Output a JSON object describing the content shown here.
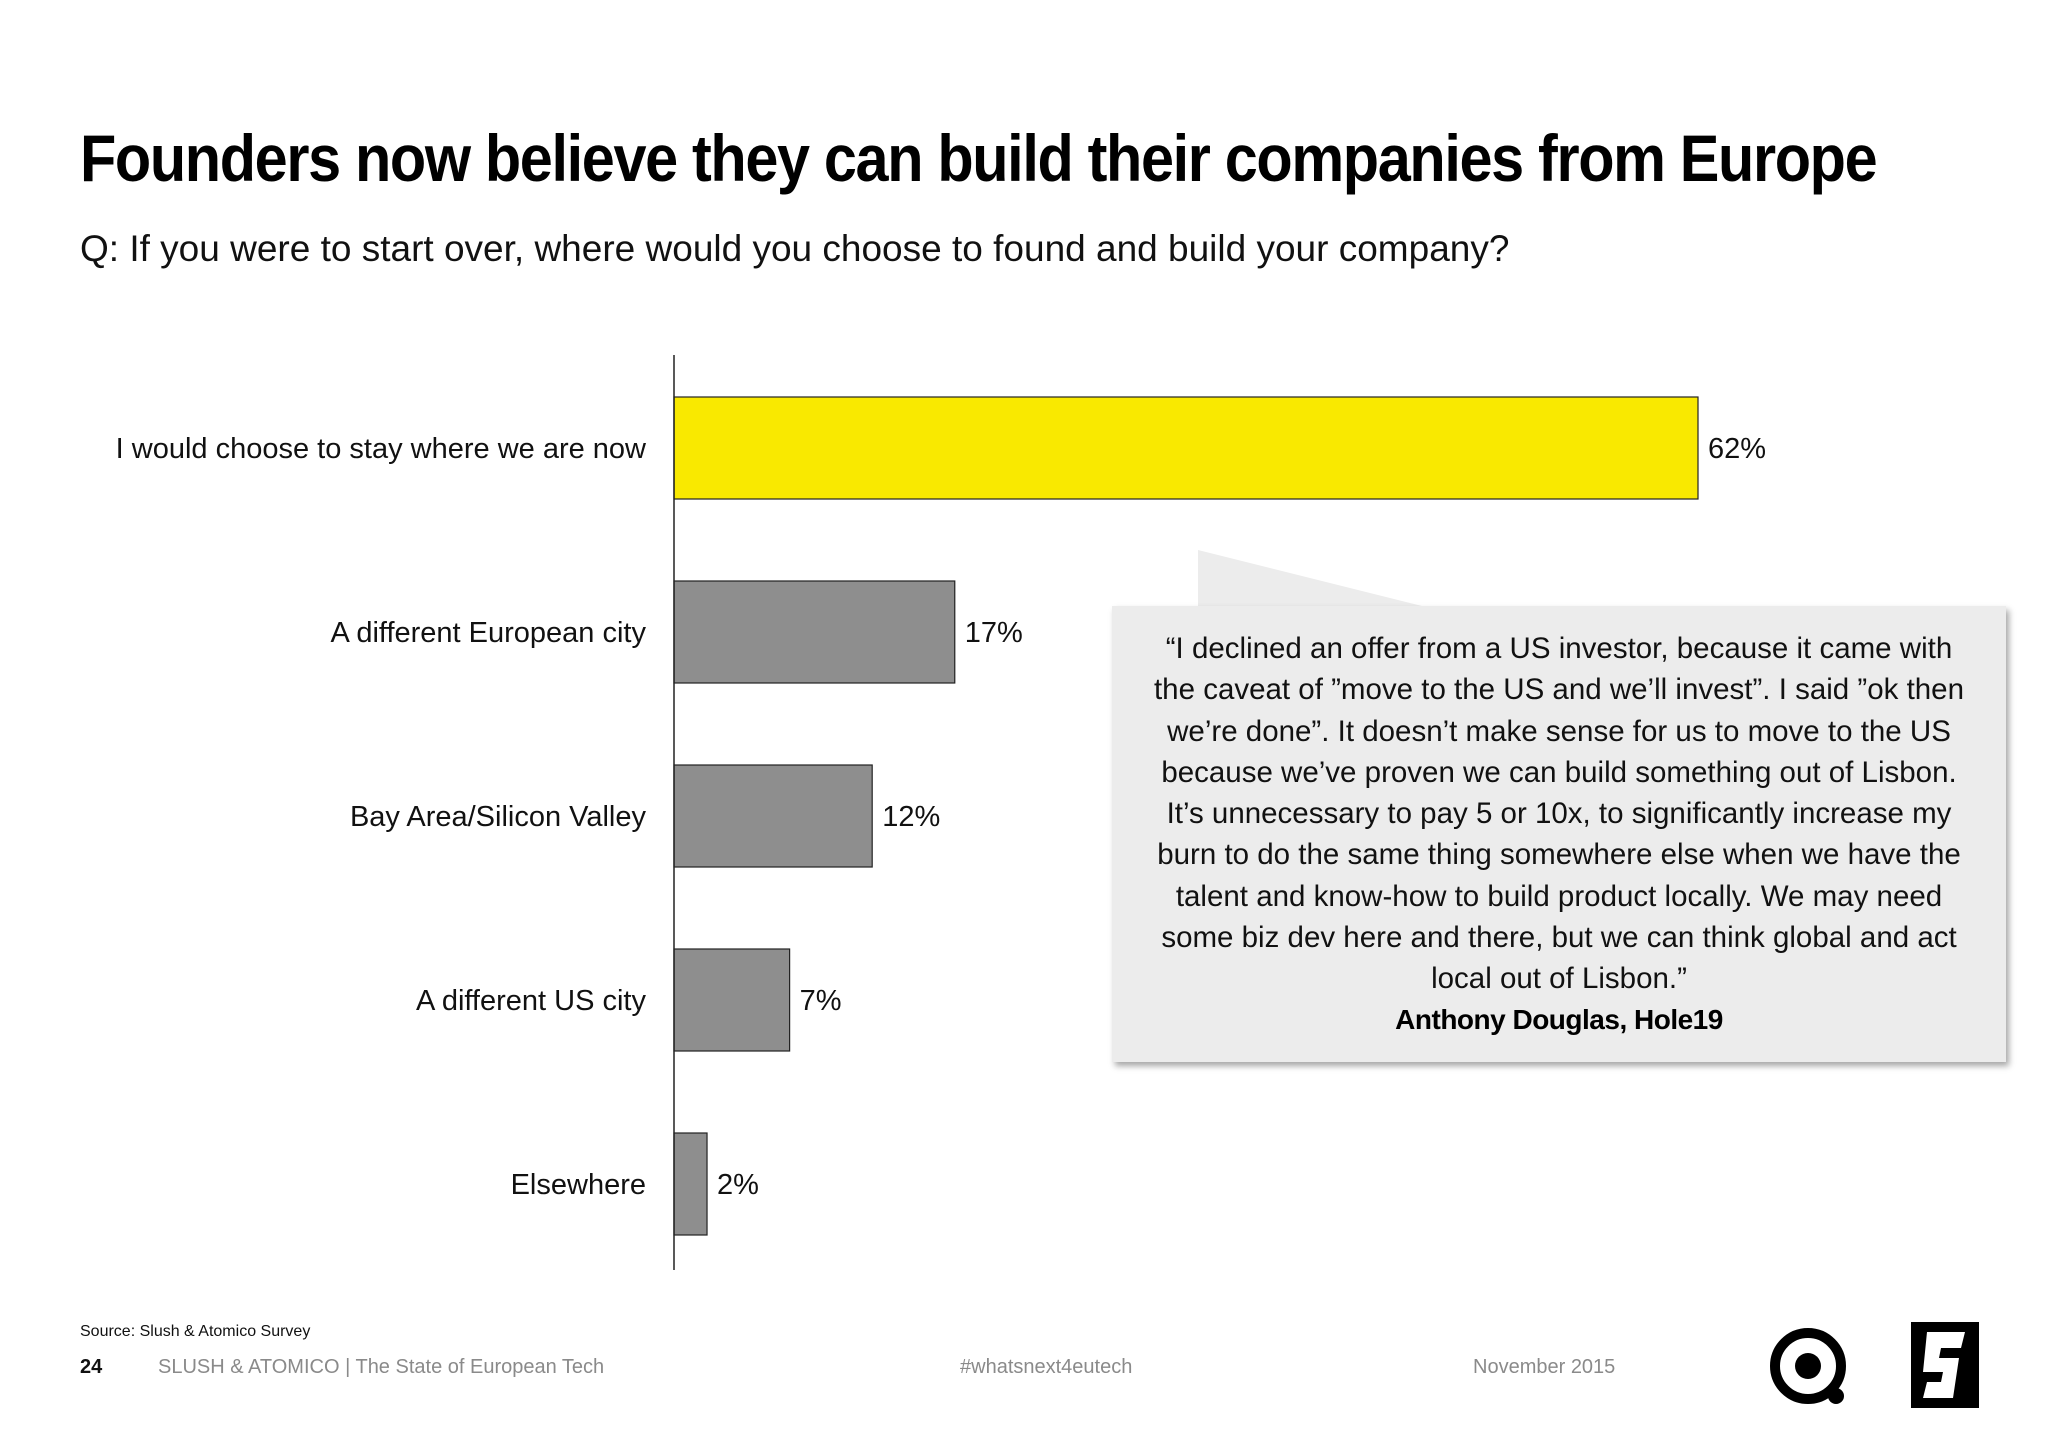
{
  "slide": {
    "title": "Founders now believe they can build their companies from Europe",
    "question": "Q: If you were to start over, where would you choose to found and build your company?"
  },
  "chart_data": {
    "type": "bar",
    "orientation": "horizontal",
    "categories": [
      "I would choose to stay where we are now",
      "A different European city",
      "Bay Area/Silicon Valley",
      "A different US city",
      "Elsewhere"
    ],
    "values": [
      62,
      17,
      12,
      7,
      2
    ],
    "value_labels": [
      "62%",
      "17%",
      "12%",
      "7%",
      "2%"
    ],
    "colors": [
      "#f9e900",
      "#8e8e8e",
      "#8e8e8e",
      "#8e8e8e",
      "#8e8e8e"
    ],
    "xlim": [
      0,
      62
    ],
    "grid": false
  },
  "quote": {
    "text": "“I declined an offer from a US investor, because it came with the caveat of ”move to the US and we’ll invest”. I said ”ok then we’re done”. It doesn’t make sense for us to move to the US because we’ve proven we can build something out of Lisbon. It’s unnecessary to pay 5 or 10x, to significantly increase my burn to do the same thing somewhere else  when we have the talent and know-how to build product locally. We may need some biz dev here and there,  but we can think global  and act local out of Lisbon.”",
    "author": "Anthony Douglas, Hole19"
  },
  "footer": {
    "source": "Source: Slush & Atomico Survey",
    "page_number": "24",
    "report": "SLUSH & ATOMICO  |  The State of European Tech",
    "hashtag": "#whatsnext4eutech",
    "date": "November 2015"
  },
  "logos": {
    "left": "atomico-logo-icon",
    "right": "slush-logo-icon"
  }
}
